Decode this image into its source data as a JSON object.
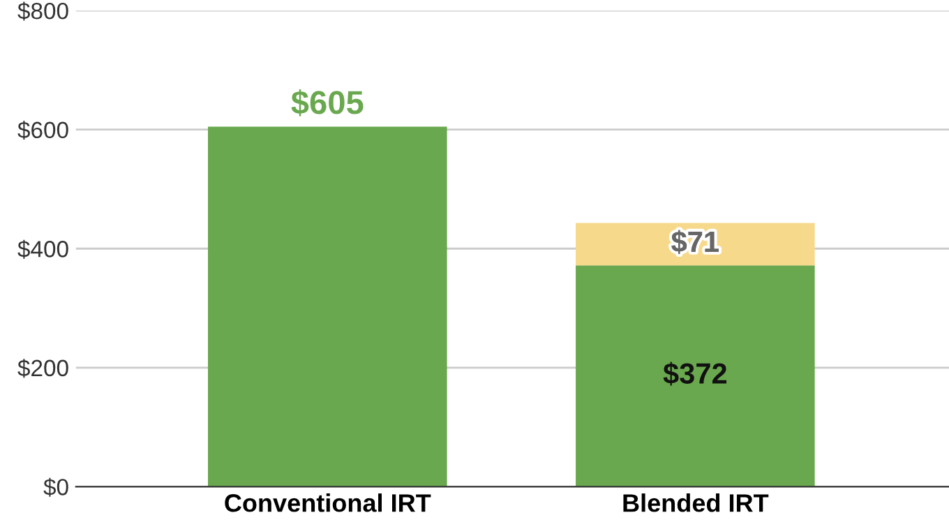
{
  "chart_data": {
    "type": "bar",
    "stacked": true,
    "categories": [
      "Conventional IRT",
      "Blended IRT"
    ],
    "series": [
      {
        "color": "#6aa84f",
        "values": [
          605,
          372
        ],
        "value_labels": [
          "$605",
          "$372"
        ]
      },
      {
        "color": "#f6d98b",
        "values": [
          null,
          71
        ],
        "value_labels": [
          null,
          "$71"
        ]
      }
    ],
    "ylim": [
      0,
      800
    ],
    "yticks": [
      {
        "value": 0,
        "label": "$0"
      },
      {
        "value": 200,
        "label": "$200"
      },
      {
        "value": 400,
        "label": "$400"
      },
      {
        "value": 600,
        "label": "$600"
      },
      {
        "value": 800,
        "label": "$800"
      }
    ],
    "grid": "y"
  }
}
